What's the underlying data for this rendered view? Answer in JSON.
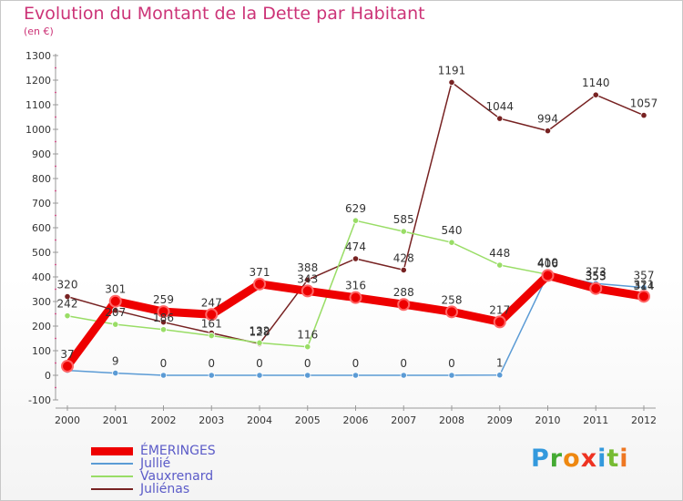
{
  "title": "Evolution du Montant de la Dette par Habitant",
  "subtitle": "(en €)",
  "logo": "Proxiti",
  "chart_data": {
    "type": "line",
    "title": "Evolution du Montant de la Dette par Habitant",
    "ylabel": "(en €)",
    "x": [
      "2000",
      "2001",
      "2002",
      "2003",
      "2004",
      "2005",
      "2006",
      "2007",
      "2008",
      "2009",
      "2010",
      "2011",
      "2012"
    ],
    "yticks": [
      -100,
      0,
      100,
      200,
      300,
      400,
      500,
      600,
      700,
      800,
      900,
      1000,
      1100,
      1200,
      1300
    ],
    "ylim": [
      -100,
      1300
    ],
    "grid": false,
    "legend_position": "bottom-left",
    "series": [
      {
        "name": "ÉMERINGES",
        "color": "#ee0000",
        "values": [
          37,
          301,
          259,
          247,
          371,
          343,
          316,
          288,
          258,
          217,
          406,
          353,
          321
        ],
        "labels": [
          "37",
          "301",
          "259",
          "247",
          "371",
          "343",
          "316",
          "288",
          "258",
          "217",
          "406",
          "353",
          "321"
        ]
      },
      {
        "name": "Jullié",
        "color": "#5b9bd5",
        "values": [
          20,
          9,
          0,
          0,
          0,
          0,
          0,
          0,
          0,
          1,
          410,
          373,
          357
        ],
        "labels": [
          "",
          "9",
          "0",
          "0",
          "0",
          "0",
          "0",
          "0",
          "0",
          "1",
          "410",
          "373",
          "357"
        ]
      },
      {
        "name": "Vauxrenard",
        "color": "#99dd66",
        "values": [
          242,
          207,
          186,
          161,
          132,
          116,
          629,
          585,
          540,
          448,
          410,
          355,
          314
        ],
        "labels": [
          "242",
          "207",
          "186",
          "161",
          "132",
          "116",
          "629",
          "585",
          "540",
          "448",
          "410",
          "355",
          "314"
        ]
      },
      {
        "name": "Juliénas",
        "color": "#772222",
        "values": [
          320,
          264,
          216,
          172,
          128,
          388,
          474,
          428,
          1191,
          1044,
          994,
          1140,
          1057
        ],
        "labels": [
          "320",
          "",
          "",
          "",
          "128",
          "388",
          "474",
          "428",
          "1191",
          "1044",
          "994",
          "1140",
          "1057"
        ]
      }
    ]
  }
}
